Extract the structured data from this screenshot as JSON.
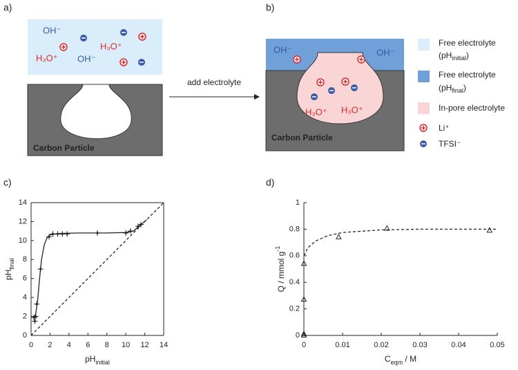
{
  "panel_labels": [
    "a)",
    "b)",
    "c)",
    "d)"
  ],
  "schematic_a": {
    "ions": [
      "OH⁻",
      "H₃O⁺",
      "OH⁻",
      "H₃O⁺"
    ],
    "particle_label": "Carbon Particle"
  },
  "arrow_label": "add electrolyte",
  "schematic_b": {
    "ions": [
      "OH⁻",
      "OH⁻",
      "H₃O⁺",
      "H₃O⁺"
    ],
    "particle_label": "Carbon Particle"
  },
  "legend": [
    {
      "label": "Free electrolyte",
      "line2": {
        "text": "(pH",
        "sub": "initial",
        "after": ")"
      }
    },
    {
      "label": "Free electrolyte",
      "line2": {
        "text": "(pH",
        "sub": "final",
        "after": ")"
      }
    },
    {
      "label": "In-pore electrolyte"
    },
    {
      "label": "Li⁺"
    },
    {
      "label": "TFSI⁻"
    }
  ],
  "chart_data": [
    {
      "type": "scatter",
      "frame": "box",
      "marker": "errorbar",
      "color": "#222",
      "xlabel": {
        "text": "pH",
        "sub": "initial"
      },
      "ylabel": {
        "text": "pH",
        "sub": "final"
      },
      "points": {
        "x": [
          0.3,
          0.4,
          0.5,
          0.6,
          1.0,
          1.9,
          2.3,
          2.8,
          3.3,
          3.8,
          7.0,
          10.0,
          10.5,
          11.3,
          11.6
        ],
        "values": [
          1.9,
          1.5,
          2.0,
          3.3,
          7.0,
          10.4,
          10.7,
          10.7,
          10.7,
          10.7,
          10.8,
          10.8,
          11.0,
          11.5,
          11.7
        ],
        "xerr": [
          0.3,
          0.3,
          0.3,
          0.3,
          0.3,
          0.3,
          0.3,
          0.3,
          0.3,
          0.3,
          0.3,
          0.3,
          0.3,
          0.3,
          0.3
        ],
        "yerr": [
          0.3,
          0.3,
          0.3,
          0.3,
          0.3,
          0.3,
          0.3,
          0.3,
          0.3,
          0.3,
          0.3,
          0.3,
          0.3,
          0.3,
          0.3
        ]
      },
      "fit": {
        "style": "solid",
        "x": [
          0.3,
          0.5,
          0.7,
          0.9,
          1.1,
          1.4,
          1.7,
          2.0,
          3.0,
          5.0,
          8.0,
          10.0,
          10.8,
          11.5,
          12.2
        ],
        "values": [
          1.8,
          2.3,
          3.8,
          6.0,
          8.0,
          9.6,
          10.3,
          10.6,
          10.75,
          10.8,
          10.8,
          10.85,
          11.0,
          11.6,
          12.2
        ]
      },
      "reference": {
        "style": "dashed",
        "x": [
          0,
          14
        ],
        "values": [
          0,
          14
        ]
      },
      "xlim": [
        0,
        14
      ],
      "xticks": [
        0,
        2,
        4,
        6,
        8,
        10,
        12,
        14
      ],
      "ylim": [
        0,
        14
      ],
      "yticks": [
        0,
        2,
        4,
        6,
        8,
        10,
        12,
        14
      ]
    },
    {
      "type": "scatter",
      "frame": "axes",
      "marker": "triangle",
      "color": "#222",
      "xlabel": {
        "text": "C",
        "sub": "eqm",
        "after": " / M"
      },
      "ylabel": {
        "text": "Q / mmol g",
        "sup": "-1"
      },
      "points": {
        "x": [
          0,
          0,
          0,
          0,
          0.009,
          0.0215,
          0.048
        ],
        "values": [
          0,
          0.01,
          0.27,
          0.54,
          0.74,
          0.805,
          0.79
        ]
      },
      "fit": {
        "style": "dashed",
        "x": [
          0,
          0.001,
          0.003,
          0.006,
          0.01,
          0.02,
          0.03,
          0.04,
          0.05
        ],
        "values": [
          0.6,
          0.66,
          0.71,
          0.75,
          0.775,
          0.795,
          0.8,
          0.8,
          0.8
        ]
      },
      "xlim": [
        0,
        0.05
      ],
      "xticks": [
        0,
        0.01,
        0.02,
        0.03,
        0.04,
        0.05
      ],
      "ylim": [
        0,
        1
      ],
      "yticks": [
        0,
        0.2,
        0.4,
        0.6,
        0.8,
        1
      ]
    }
  ]
}
